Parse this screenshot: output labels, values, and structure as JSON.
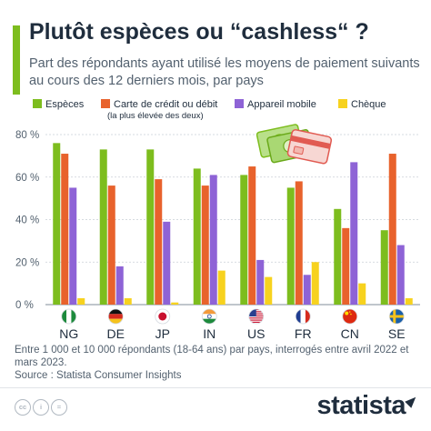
{
  "header": {
    "title": "Plutôt espèces ou “cashless“ ?",
    "subtitle": "Part des répondants ayant utilisé les moyens de paiement suivants au cours des 12 derniers mois, par pays"
  },
  "legend": {
    "items": [
      {
        "label": "Espèces",
        "color": "#7dbd1e"
      },
      {
        "label": "Carte de crédit ou débit",
        "sub": "(la plus élevée des deux)",
        "color": "#e8622c"
      },
      {
        "label": "Appareil mobile",
        "color": "#8e63d6"
      },
      {
        "label": "Chèque",
        "color": "#f7d21e"
      }
    ]
  },
  "chart_data": {
    "type": "bar",
    "categories": [
      "NG",
      "DE",
      "JP",
      "IN",
      "US",
      "FR",
      "CN",
      "SE"
    ],
    "series": [
      {
        "name": "Espèces",
        "color": "#7dbd1e",
        "values": [
          76,
          73,
          73,
          64,
          61,
          55,
          45,
          35
        ]
      },
      {
        "name": "Carte de crédit ou débit",
        "color": "#e8622c",
        "values": [
          71,
          56,
          59,
          56,
          65,
          58,
          36,
          71
        ]
      },
      {
        "name": "Appareil mobile",
        "color": "#8e63d6",
        "values": [
          55,
          18,
          39,
          61,
          21,
          14,
          67,
          28
        ]
      },
      {
        "name": "Chèque",
        "color": "#f7d21e",
        "values": [
          3,
          3,
          1,
          16,
          13,
          20,
          10,
          3
        ]
      }
    ],
    "y_ticks": [
      "0 %",
      "20 %",
      "40 %",
      "60 %",
      "80 %"
    ],
    "ylim": [
      0,
      80
    ],
    "grid": true,
    "legend_position": "top"
  },
  "flags": [
    "nigeria-flag",
    "germany-flag",
    "japan-flag",
    "india-flag",
    "usa-flag",
    "france-flag",
    "china-flag",
    "sweden-flag"
  ],
  "footnote": "Entre 1 000 et 10 000 répondants (18-64 ans) par pays, interrogés entre avril 2022 et mars 2023.",
  "source": "Source : Statista Consumer Insights",
  "brand": "statista",
  "license_icons": [
    "cc-icon",
    "attribution-icon",
    "equal-icon"
  ]
}
